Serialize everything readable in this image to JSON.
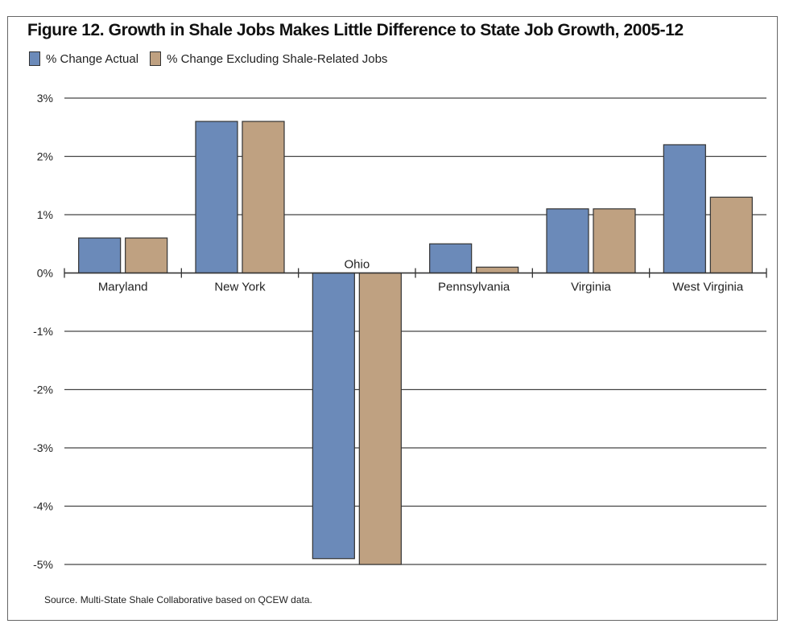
{
  "chart_data": {
    "type": "bar",
    "title": "Figure 12. Growth in Shale Jobs Makes Little Difference to State Job Growth, 2005-12",
    "categories": [
      "Maryland",
      "New York",
      "Ohio",
      "Pennsylvania",
      "Virginia",
      "West Virginia"
    ],
    "series": [
      {
        "name": "% Change Actual",
        "color": "#6b8ab9",
        "values": [
          0.6,
          2.6,
          -4.9,
          0.5,
          1.1,
          2.2
        ]
      },
      {
        "name": "% Change Excluding Shale-Related Jobs",
        "color": "#bfa181",
        "values": [
          0.6,
          2.6,
          -5.0,
          0.1,
          1.1,
          1.3
        ]
      }
    ],
    "ylim": [
      -5,
      3
    ],
    "yticks": [
      3,
      2,
      1,
      0,
      -1,
      -2,
      -3,
      -4,
      -5
    ],
    "ytick_labels": [
      "3%",
      "2%",
      "1%",
      "0%",
      "-1%",
      "-2%",
      "-3%",
      "-4%",
      "-5%"
    ],
    "xlabel": "",
    "ylabel": "",
    "grid": true,
    "legend": "top-left",
    "source": "Source. Multi-State Shale Collaborative based on QCEW data."
  }
}
